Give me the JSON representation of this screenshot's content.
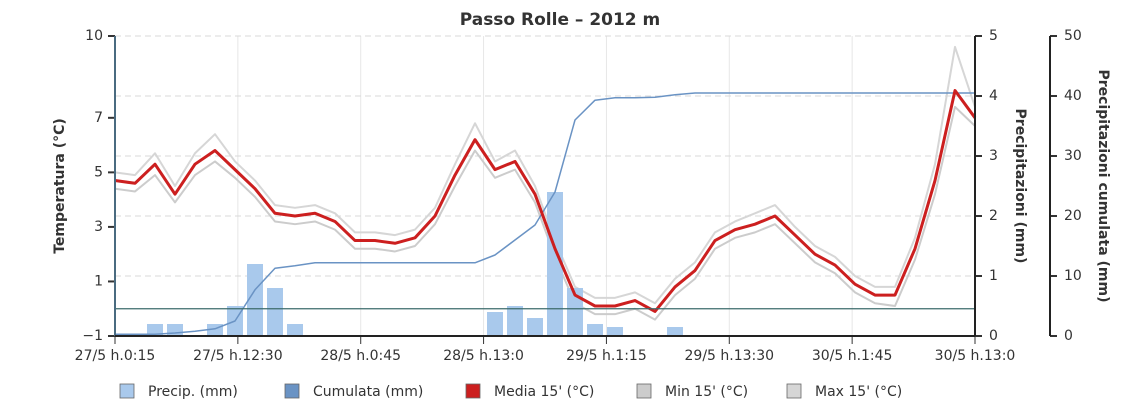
{
  "chart_data": {
    "type": "line",
    "title": "Passo Rolle – 2012 m",
    "ylabel": "Temperatura (°C)",
    "y2label": "Precipitazioni (mm)",
    "y3label": "Precipitazioni cumulata (mm)",
    "xticks": [
      "27/5 h.0:15",
      "27/5 h.12:30",
      "28/5 h.0:45",
      "28/5 h.13:0",
      "29/5 h.1:15",
      "29/5 h.13:30",
      "30/5 h.1:45",
      "30/5 h.13:0"
    ],
    "ylim": [
      -1,
      10
    ],
    "yticks": [
      {
        "value": -1,
        "label": "−1"
      },
      1,
      3,
      5,
      7,
      10
    ],
    "plotlines": [
      0
    ],
    "y2lim": [
      0,
      5
    ],
    "y2ticks": [
      0,
      1,
      2,
      3,
      4,
      5
    ],
    "y3lim": [
      0,
      50
    ],
    "y3ticks": [
      0,
      10,
      20,
      30,
      40,
      50
    ],
    "grid": true,
    "legend": "bottom",
    "series": [
      {
        "name": "Precip. (mm)",
        "type": "bar",
        "axis": "y2",
        "color": "#a9c9ec",
        "values": [
          0,
          0,
          0.2,
          0.2,
          0,
          0.2,
          0.5,
          1.2,
          0.8,
          0.2,
          0,
          0,
          0,
          0,
          0,
          0,
          0,
          0,
          0,
          0.4,
          0.5,
          0.3,
          2.4,
          0.8,
          0.2,
          0.15,
          0,
          0,
          0.15,
          0,
          0,
          0,
          0,
          0,
          0,
          0,
          0,
          0,
          0,
          0,
          0,
          0,
          0,
          0
        ]
      },
      {
        "name": "Cumulata (mm)",
        "type": "line",
        "axis": "y3",
        "color": "#6a93c4",
        "values": [
          0.3,
          0.3,
          0.3,
          0.5,
          0.8,
          1.2,
          2.5,
          7.7,
          11.3,
          11.7,
          12.2,
          12.2,
          12.2,
          12.2,
          12.2,
          12.2,
          12.2,
          12.2,
          12.2,
          13.5,
          16,
          18.5,
          24,
          36,
          39.3,
          39.7,
          39.7,
          39.8,
          40.2,
          40.5,
          40.5,
          40.5,
          40.5,
          40.5,
          40.5,
          40.5,
          40.5,
          40.5,
          40.5,
          40.5,
          40.5,
          40.5,
          40.5,
          40.5
        ]
      },
      {
        "name": "Media 15' (°C)",
        "type": "line",
        "axis": "y",
        "color": "#cc1f1f",
        "values": [
          4.7,
          4.6,
          5.3,
          4.2,
          5.3,
          5.8,
          5.1,
          4.4,
          3.5,
          3.4,
          3.5,
          3.2,
          2.5,
          2.5,
          2.4,
          2.6,
          3.4,
          4.9,
          6.2,
          5.1,
          5.4,
          4.2,
          2.2,
          0.5,
          0.1,
          0.1,
          0.3,
          -0.1,
          0.8,
          1.4,
          2.5,
          2.9,
          3.1,
          3.4,
          2.7,
          2,
          1.6,
          0.9,
          0.5,
          0.5,
          2.2,
          4.7,
          8,
          7
        ]
      },
      {
        "name": "Min 15' (°C)",
        "type": "line",
        "axis": "y",
        "color": "#cccccc",
        "values": [
          4.4,
          4.3,
          4.9,
          3.9,
          4.9,
          5.4,
          4.8,
          4.1,
          3.2,
          3.1,
          3.2,
          2.9,
          2.2,
          2.2,
          2.1,
          2.3,
          3.1,
          4.5,
          5.8,
          4.8,
          5.1,
          3.9,
          1.9,
          0.2,
          -0.2,
          -0.2,
          0,
          -0.4,
          0.5,
          1.1,
          2.2,
          2.6,
          2.8,
          3.1,
          2.4,
          1.7,
          1.3,
          0.6,
          0.2,
          0.1,
          1.8,
          4.2,
          7.4,
          6.7
        ]
      },
      {
        "name": "Max 15' (°C)",
        "type": "line",
        "axis": "y",
        "color": "#d6d6d6",
        "values": [
          5,
          4.9,
          5.7,
          4.5,
          5.7,
          6.4,
          5.4,
          4.7,
          3.8,
          3.7,
          3.8,
          3.5,
          2.8,
          2.8,
          2.7,
          2.9,
          3.7,
          5.3,
          6.8,
          5.4,
          5.8,
          4.5,
          2.5,
          0.8,
          0.4,
          0.4,
          0.6,
          0.2,
          1.1,
          1.7,
          2.8,
          3.2,
          3.5,
          3.8,
          3,
          2.3,
          1.9,
          1.2,
          0.8,
          0.8,
          2.6,
          5.3,
          9.6,
          7.4
        ]
      }
    ]
  }
}
